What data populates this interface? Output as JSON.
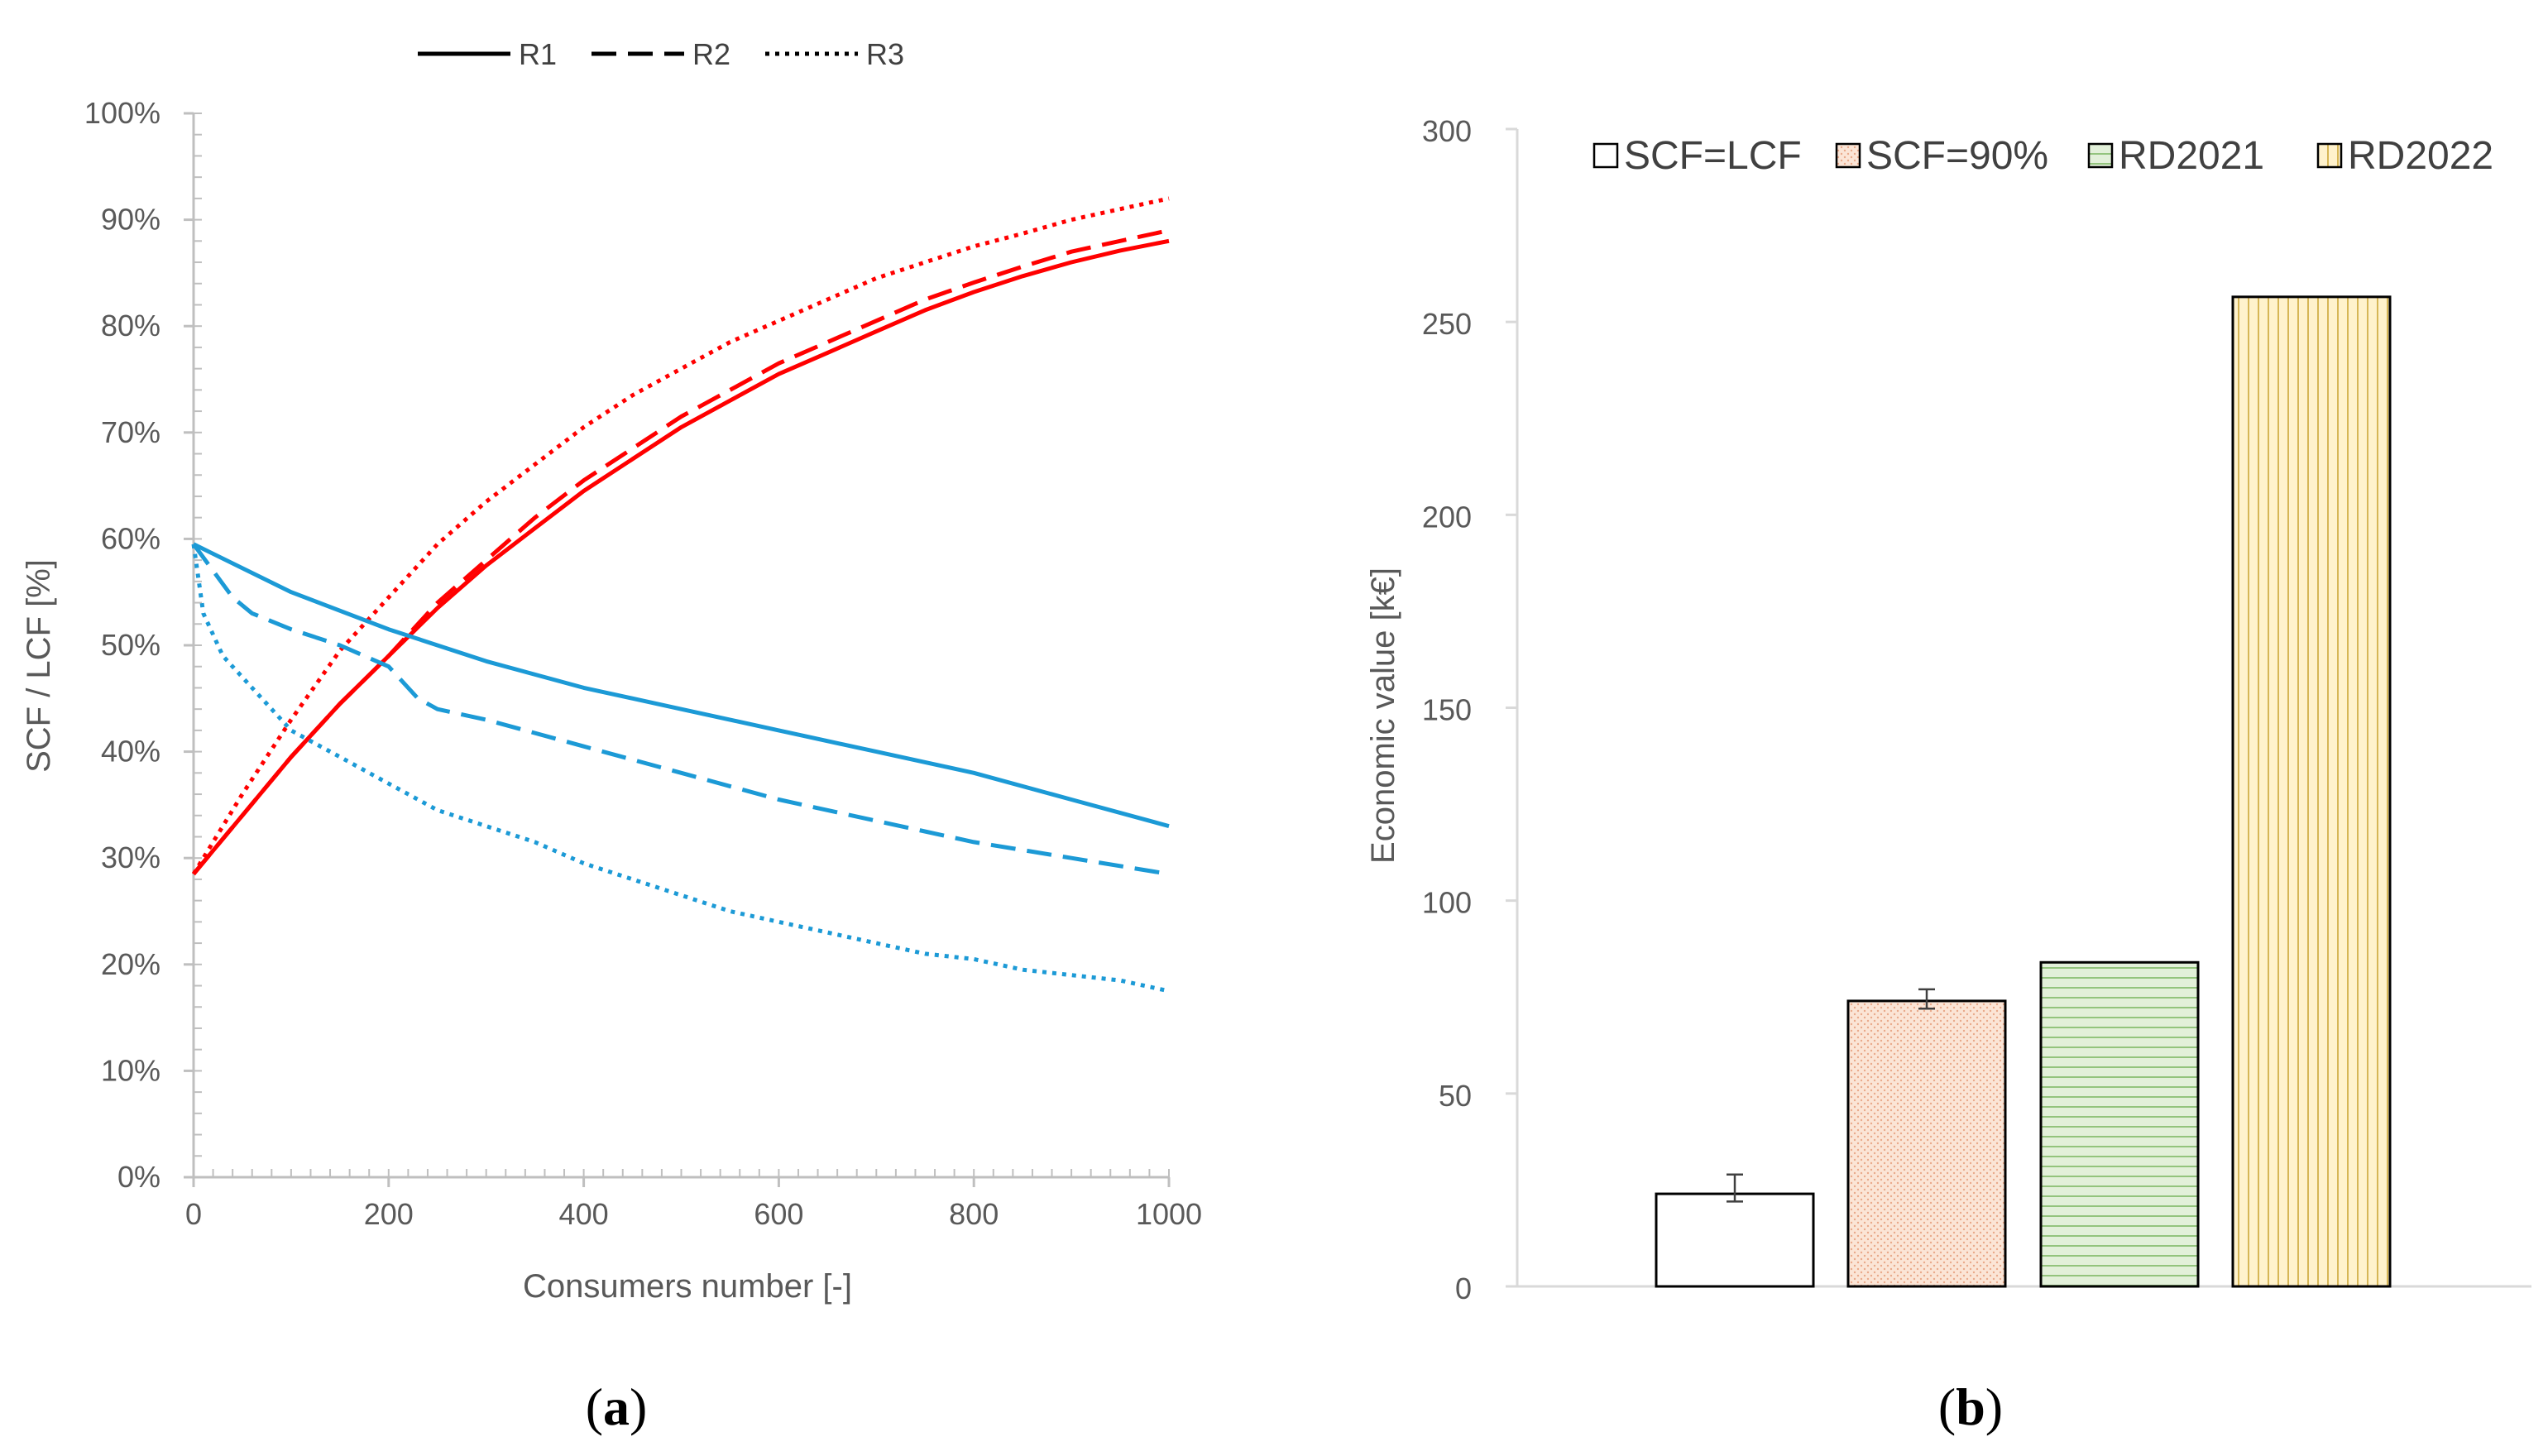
{
  "chart_data": [
    {
      "panel_label_parts": [
        "(",
        "a",
        ")"
      ],
      "type": "line",
      "xlabel": "Consumers number [-]",
      "ylabel_parts": [
        {
          "text": "SCF",
          "color": "#ff0000"
        },
        {
          "text": " / ",
          "color": "#595959"
        },
        {
          "text": "LCF",
          "color": "#00b0f0"
        },
        {
          "text": " [%]",
          "color": "#595959"
        }
      ],
      "xlim": [
        0,
        1000
      ],
      "ylim": [
        0,
        100
      ],
      "x_ticks": [
        "0",
        "200",
        "400",
        "600",
        "800",
        "1000"
      ],
      "y_ticks": [
        "0%",
        "10%",
        "20%",
        "30%",
        "40%",
        "50%",
        "60%",
        "70%",
        "80%",
        "90%",
        "100%"
      ],
      "legend": [
        {
          "label": "R1",
          "style": "solid"
        },
        {
          "label": "R2",
          "style": "dashed"
        },
        {
          "label": "R3",
          "style": "dotted"
        }
      ],
      "colors": {
        "SCF": "#ff0000",
        "LCF": "#1c9ad6"
      },
      "series": [
        {
          "name": "SCF R1",
          "metric": "SCF",
          "style": "solid",
          "x": [
            0,
            50,
            100,
            150,
            200,
            250,
            300,
            350,
            400,
            450,
            500,
            550,
            600,
            650,
            700,
            750,
            800,
            850,
            900,
            950,
            1000
          ],
          "values": [
            28.5,
            34,
            39.5,
            44.5,
            49,
            53.5,
            57.5,
            61,
            64.5,
            67.5,
            70.5,
            73,
            75.5,
            77.5,
            79.5,
            81.5,
            83.2,
            84.7,
            86,
            87.1,
            88
          ]
        },
        {
          "name": "SCF R2",
          "metric": "SCF",
          "style": "dashed",
          "x": [
            0,
            50,
            100,
            150,
            200,
            250,
            300,
            350,
            400,
            450,
            500,
            550,
            600,
            650,
            700,
            750,
            800,
            850,
            900,
            950,
            1000
          ],
          "values": [
            28.5,
            34,
            39.5,
            44.5,
            49,
            54,
            58,
            62,
            65.5,
            68.5,
            71.5,
            74,
            76.5,
            78.5,
            80.5,
            82.5,
            84.1,
            85.6,
            87,
            88,
            89
          ]
        },
        {
          "name": "SCF R3",
          "metric": "SCF",
          "style": "dotted",
          "x": [
            0,
            50,
            100,
            150,
            200,
            250,
            300,
            350,
            400,
            450,
            500,
            550,
            600,
            650,
            700,
            750,
            800,
            850,
            900,
            950,
            1000
          ],
          "values": [
            28.5,
            36,
            43,
            49.5,
            54.5,
            59.5,
            63.5,
            67,
            70.5,
            73.5,
            76,
            78.5,
            80.5,
            82.5,
            84.5,
            86,
            87.5,
            88.7,
            90,
            91,
            92
          ]
        },
        {
          "name": "LCF R1",
          "metric": "LCF",
          "style": "solid",
          "x": [
            0,
            100,
            200,
            300,
            400,
            500,
            600,
            700,
            800,
            900,
            1000
          ],
          "values": [
            59.5,
            55,
            51.5,
            48.5,
            46,
            44,
            42,
            40,
            38,
            35.5,
            33
          ]
        },
        {
          "name": "LCF R2",
          "metric": "LCF",
          "style": "dashed",
          "x": [
            0,
            20,
            40,
            60,
            100,
            150,
            200,
            230,
            250,
            300,
            400,
            500,
            600,
            700,
            800,
            900,
            1000
          ],
          "values": [
            59.5,
            57,
            54.5,
            53,
            51.5,
            50,
            48,
            45,
            44,
            43,
            40.5,
            38,
            35.5,
            33.5,
            31.5,
            30,
            28.5
          ]
        },
        {
          "name": "LCF R3",
          "metric": "LCF",
          "style": "dotted",
          "x": [
            0,
            10,
            30,
            60,
            100,
            150,
            200,
            250,
            300,
            350,
            400,
            450,
            500,
            550,
            600,
            650,
            700,
            750,
            800,
            850,
            900,
            950,
            1000
          ],
          "values": [
            59.5,
            53,
            49,
            46,
            42,
            39.5,
            37,
            34.5,
            33,
            31.5,
            29.5,
            28,
            26.5,
            25,
            24,
            23,
            22,
            21,
            20.5,
            19.5,
            19,
            18.5,
            17.5
          ]
        }
      ]
    },
    {
      "panel_label_parts": [
        "(",
        "b",
        ")"
      ],
      "type": "bar",
      "ylabel": "Economic value [k€]",
      "ylim": [
        0,
        300
      ],
      "y_ticks": [
        "0",
        "50",
        "100",
        "150",
        "200",
        "250",
        "300"
      ],
      "categories": [
        "SCF=LCF",
        "SCF=90%",
        "RD2021",
        "RD2022"
      ],
      "values": [
        24,
        74,
        84,
        256.5
      ],
      "error": [
        [
          2,
          5
        ],
        [
          2,
          3
        ],
        null,
        null
      ],
      "fills": [
        "#ffffff",
        "#fbe5d6",
        "#e2f0d9",
        "#fff2cc"
      ],
      "patterns": [
        "none",
        "dots",
        "horizontal",
        "vertical"
      ]
    }
  ]
}
